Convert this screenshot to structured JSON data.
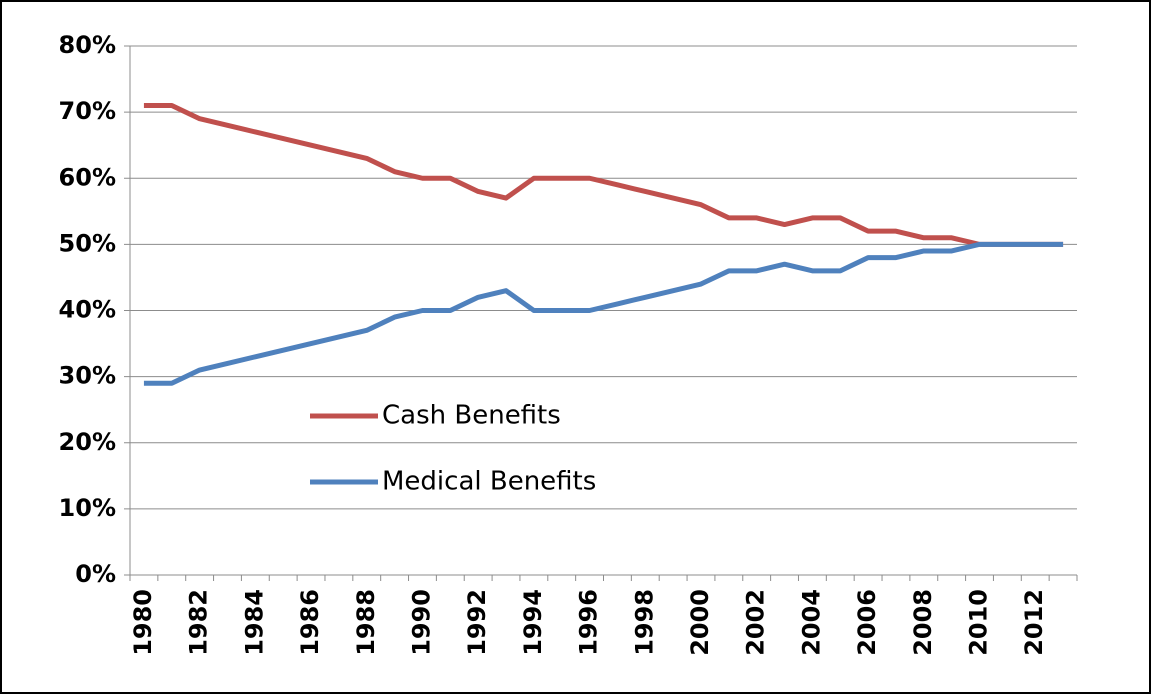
{
  "chart_data": {
    "type": "line",
    "categories": [
      "1980",
      null,
      "1982",
      null,
      "1984",
      null,
      "1986",
      null,
      "1988",
      null,
      "1990",
      null,
      "1992",
      null,
      "1994",
      null,
      "1996",
      null,
      "1998",
      null,
      "2000",
      null,
      "2002",
      null,
      "2004",
      null,
      "2006",
      null,
      "2008",
      null,
      "2010",
      null,
      "2012",
      null
    ],
    "series": [
      {
        "name": "Cash Benefits",
        "color": "#c0504d",
        "values": [
          71,
          71,
          69,
          68,
          67,
          66,
          65,
          64,
          63,
          61,
          60,
          60,
          58,
          57,
          60,
          60,
          60,
          59,
          58,
          57,
          56,
          54,
          54,
          53,
          54,
          54,
          52,
          52,
          51,
          51,
          50,
          50,
          50,
          50
        ]
      },
      {
        "name": "Medical Benefits",
        "color": "#4f81bd",
        "values": [
          29,
          29,
          31,
          32,
          33,
          34,
          35,
          36,
          37,
          39,
          40,
          40,
          42,
          43,
          40,
          40,
          40,
          41,
          42,
          43,
          44,
          46,
          46,
          47,
          46,
          46,
          48,
          48,
          49,
          49,
          50,
          50,
          50,
          50
        ]
      }
    ],
    "ylim": [
      0,
      80
    ],
    "yticks": [
      {
        "value": 0,
        "label": "0%"
      },
      {
        "value": 10,
        "label": "10%"
      },
      {
        "value": 20,
        "label": "20%"
      },
      {
        "value": 30,
        "label": "30%"
      },
      {
        "value": 40,
        "label": "40%"
      },
      {
        "value": 50,
        "label": "50%"
      },
      {
        "value": 60,
        "label": "60%"
      },
      {
        "value": 70,
        "label": "70%"
      },
      {
        "value": 80,
        "label": "80%"
      }
    ],
    "grid": true,
    "legend_position": "center-left"
  }
}
